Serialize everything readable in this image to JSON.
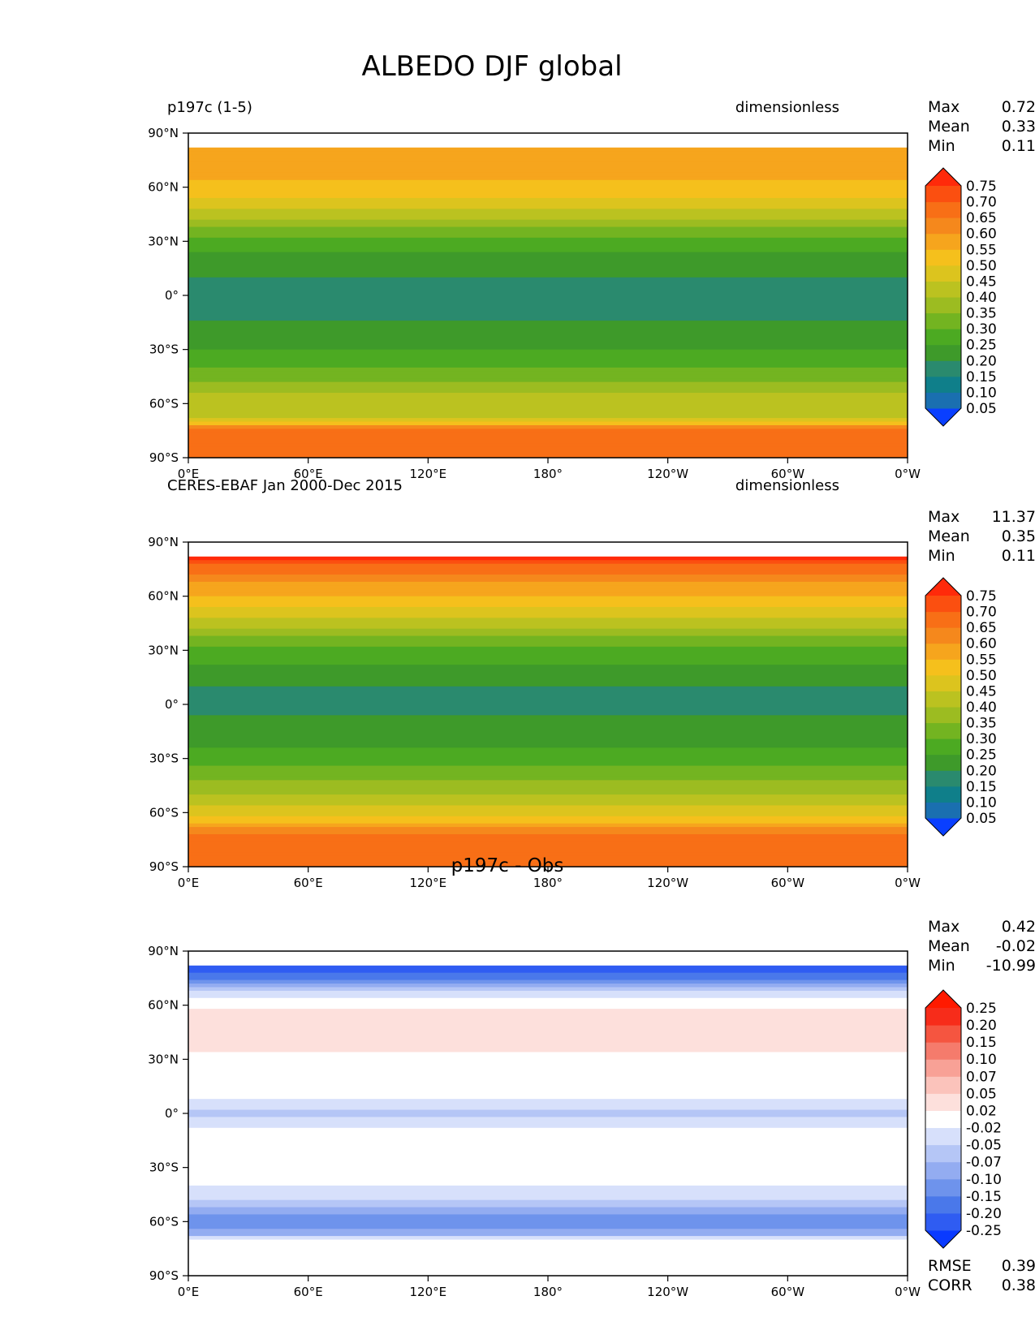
{
  "figure": {
    "title": "ALBEDO DJF global"
  },
  "chart_data": [
    {
      "type": "heatmap",
      "left_title": "p197c (1-5)",
      "center_title": "",
      "right_title": "dimensionless",
      "xticks": [
        "0°E",
        "60°E",
        "120°E",
        "180°",
        "120°W",
        "60°W",
        "0°W"
      ],
      "yticks": [
        "90°N",
        "60°N",
        "30°N",
        "0°",
        "30°S",
        "60°S",
        "90°S"
      ],
      "xlim": [
        0,
        360
      ],
      "ylim": [
        -90,
        90
      ],
      "stats": [
        {
          "label": "Max",
          "value": "0.72"
        },
        {
          "label": "Mean",
          "value": "0.33"
        },
        {
          "label": "Min",
          "value": "0.11"
        }
      ],
      "extra_stats": [],
      "colorbar": {
        "levels": [
          "0.05",
          "0.10",
          "0.15",
          "0.20",
          "0.25",
          "0.30",
          "0.35",
          "0.40",
          "0.45",
          "0.50",
          "0.55",
          "0.60",
          "0.65",
          "0.70",
          "0.75"
        ],
        "colors": [
          "#0a3fff",
          "#1a6fb0",
          "#0f7f8a",
          "#2a8a6e",
          "#3e9a2a",
          "#4caa22",
          "#73b421",
          "#9cbc21",
          "#bbc220",
          "#dcc41e",
          "#f5c01c",
          "#f6a51d",
          "#f5881c",
          "#f86f16",
          "#fb4f10",
          "#ff2a0a"
        ]
      },
      "zonal_profile": {
        "lat": [
          82,
          75,
          65,
          55,
          45,
          35,
          25,
          15,
          5,
          -5,
          -15,
          -25,
          -35,
          -45,
          -55,
          -62,
          -68,
          -75,
          -82,
          -90
        ],
        "value": [
          0.58,
          0.58,
          0.55,
          0.5,
          0.42,
          0.33,
          0.25,
          0.22,
          0.18,
          0.18,
          0.2,
          0.22,
          0.27,
          0.33,
          0.4,
          0.42,
          0.45,
          0.66,
          0.66,
          0.66
        ]
      }
    },
    {
      "type": "heatmap",
      "left_title": "CERES-EBAF Jan 2000-Dec 2015",
      "center_title": "",
      "right_title": "dimensionless",
      "xticks": [
        "0°E",
        "60°E",
        "120°E",
        "180°",
        "120°W",
        "60°W",
        "0°W"
      ],
      "yticks": [
        "90°N",
        "60°N",
        "30°N",
        "0°",
        "30°S",
        "60°S",
        "90°S"
      ],
      "xlim": [
        0,
        360
      ],
      "ylim": [
        -90,
        90
      ],
      "stats": [
        {
          "label": "Max",
          "value": "11.37"
        },
        {
          "label": "Mean",
          "value": "0.35"
        },
        {
          "label": "Min",
          "value": "0.11"
        }
      ],
      "extra_stats": [],
      "colorbar": {
        "levels": [
          "0.05",
          "0.10",
          "0.15",
          "0.20",
          "0.25",
          "0.30",
          "0.35",
          "0.40",
          "0.45",
          "0.50",
          "0.55",
          "0.60",
          "0.65",
          "0.70",
          "0.75"
        ],
        "colors": [
          "#0a3fff",
          "#1a6fb0",
          "#0f7f8a",
          "#2a8a6e",
          "#3e9a2a",
          "#4caa22",
          "#73b421",
          "#9cbc21",
          "#bbc220",
          "#dcc41e",
          "#f5c01c",
          "#f6a51d",
          "#f5881c",
          "#f86f16",
          "#fb4f10",
          "#ff2a0a"
        ]
      },
      "zonal_profile": {
        "lat": [
          82,
          78,
          70,
          60,
          50,
          40,
          30,
          20,
          10,
          0,
          -10,
          -20,
          -30,
          -40,
          -50,
          -58,
          -65,
          -72,
          -80,
          -90
        ],
        "value": [
          0.78,
          0.7,
          0.62,
          0.55,
          0.47,
          0.37,
          0.28,
          0.24,
          0.2,
          0.18,
          0.21,
          0.23,
          0.27,
          0.33,
          0.4,
          0.47,
          0.52,
          0.66,
          0.66,
          0.66
        ]
      }
    },
    {
      "type": "heatmap",
      "left_title": "",
      "center_title": "p197c - Obs",
      "right_title": "",
      "xticks": [
        "0°E",
        "60°E",
        "120°E",
        "180°",
        "120°W",
        "60°W",
        "0°W"
      ],
      "yticks": [
        "90°N",
        "60°N",
        "30°N",
        "0°",
        "30°S",
        "60°S",
        "90°S"
      ],
      "xlim": [
        0,
        360
      ],
      "ylim": [
        -90,
        90
      ],
      "stats": [
        {
          "label": "Max",
          "value": "0.42"
        },
        {
          "label": "Mean",
          "value": "-0.02"
        },
        {
          "label": "Min",
          "value": "-10.99"
        }
      ],
      "extra_stats": [
        {
          "label": "RMSE",
          "value": "0.39"
        },
        {
          "label": "CORR",
          "value": "0.38"
        }
      ],
      "colorbar": {
        "levels": [
          "-0.25",
          "-0.20",
          "-0.15",
          "-0.10",
          "-0.07",
          "-0.05",
          "-0.02",
          "0.02",
          "0.05",
          "0.07",
          "0.10",
          "0.15",
          "0.20",
          "0.25"
        ],
        "colors": [
          "#0a3aff",
          "#2f5cf2",
          "#4a78ea",
          "#6e93ec",
          "#93acf1",
          "#b5c6f6",
          "#d7e0fb",
          "#ffffff",
          "#fde0dc",
          "#fbc3bb",
          "#f8a196",
          "#f57b6c",
          "#f55540",
          "#f72c1a",
          "#ff1a00"
        ]
      },
      "zonal_profile": {
        "lat": [
          82,
          78,
          72,
          65,
          55,
          45,
          35,
          25,
          15,
          5,
          0,
          -10,
          -25,
          -40,
          -50,
          -58,
          -65,
          -72,
          -80,
          -90
        ],
        "value": [
          -0.25,
          -0.2,
          -0.1,
          -0.03,
          0.04,
          0.03,
          0.02,
          0.01,
          0.0,
          -0.03,
          -0.06,
          -0.01,
          0.0,
          -0.02,
          -0.06,
          -0.12,
          -0.1,
          0.0,
          0.02,
          0.0
        ]
      }
    }
  ]
}
